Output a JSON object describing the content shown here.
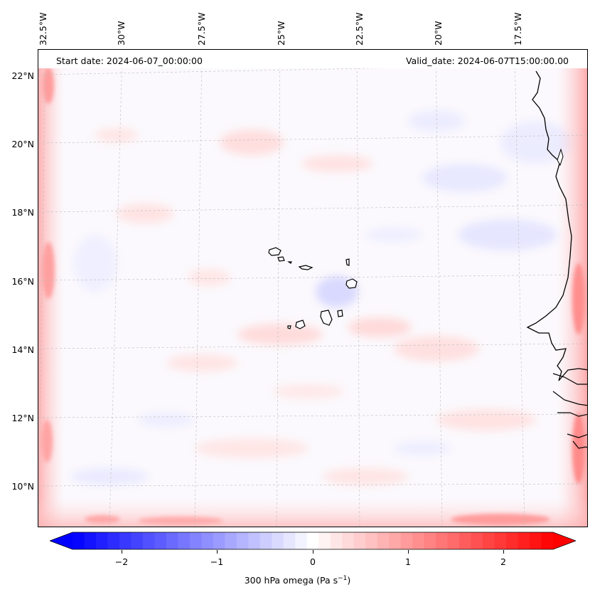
{
  "map": {
    "header": {
      "start_date": "Start date: 2024-06-07_00:00:00",
      "valid_date": "Valid_date: 2024-06-07T15:00:00.00"
    },
    "longitude_labels": [
      "32.5°W",
      "30°W",
      "27.5°W",
      "25°W",
      "22.5°W",
      "20°W",
      "17.5°W"
    ],
    "latitude_labels": [
      "22°N",
      "20°N",
      "18°N",
      "16°N",
      "14°N",
      "12°N",
      "10°N"
    ],
    "features": [
      "Cape Verde islands",
      "West African coastline"
    ]
  },
  "colorbar": {
    "label_prefix": "300 hPa omega (Pa s",
    "label_exp": "−1",
    "label_suffix": ")",
    "ticks": [
      "−2",
      "−1",
      "0",
      "1",
      "2"
    ],
    "tick_values": [
      -2,
      -1,
      0,
      1,
      2
    ],
    "range": [
      -2.7,
      2.7
    ],
    "colors": {
      "min": "#0000ff",
      "mid": "#ffffff",
      "max": "#ff0000"
    }
  }
}
